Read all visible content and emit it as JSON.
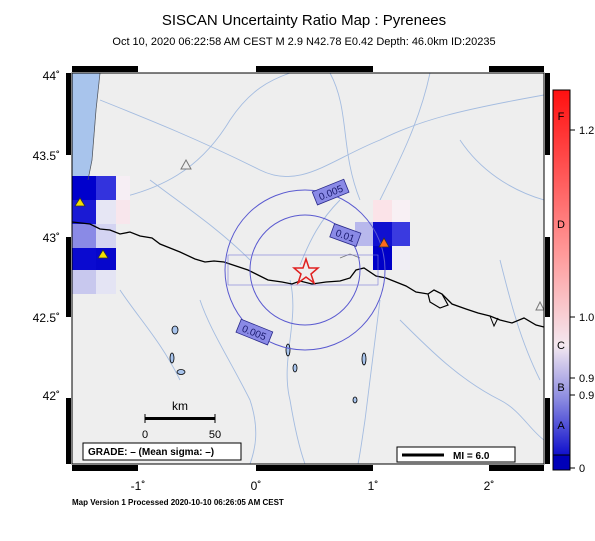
{
  "title": "SISCAN Uncertainty Ratio Map : Pyrenees",
  "subtitle": "Oct 10, 2020 06:22:58 AM CEST   M 2.9   N42.78 E0.42   Depth: 46.0km   ID:20235",
  "lat_ticks": [
    "44˚",
    "43.5˚",
    "43˚",
    "42.5˚",
    "42˚"
  ],
  "lon_ticks": [
    "-1˚",
    "0˚",
    "1˚",
    "2˚"
  ],
  "contours": [
    {
      "label": "0.005"
    },
    {
      "label": "0.01"
    },
    {
      "label": "0.005"
    }
  ],
  "scale_bar": {
    "unit": "km",
    "start": "0",
    "end": "50"
  },
  "grade_box": "GRADE: – (Mean sigma: –)",
  "mi_box": "MI = 6.0",
  "footer": "Map Version 1 Processed 2020-10-10 06:26:05 AM CEST",
  "colorbar": {
    "right_labels": [
      "1.2",
      "1.0",
      "0.9",
      "0.9",
      "0"
    ],
    "inner_labels": [
      "F",
      "D",
      "C",
      "B",
      "A"
    ],
    "colors": {
      "top": "#ff0000",
      "mid": "#ffe8e8",
      "low": "#9090e8",
      "bottom": "#0000cc"
    }
  },
  "colors": {
    "map_bg": "#f0f0f0",
    "sea": "#a8c4ec",
    "river": "#9fb8dd",
    "border": "#000000",
    "epicenter": "#e02020",
    "contour": "#5555cc"
  }
}
